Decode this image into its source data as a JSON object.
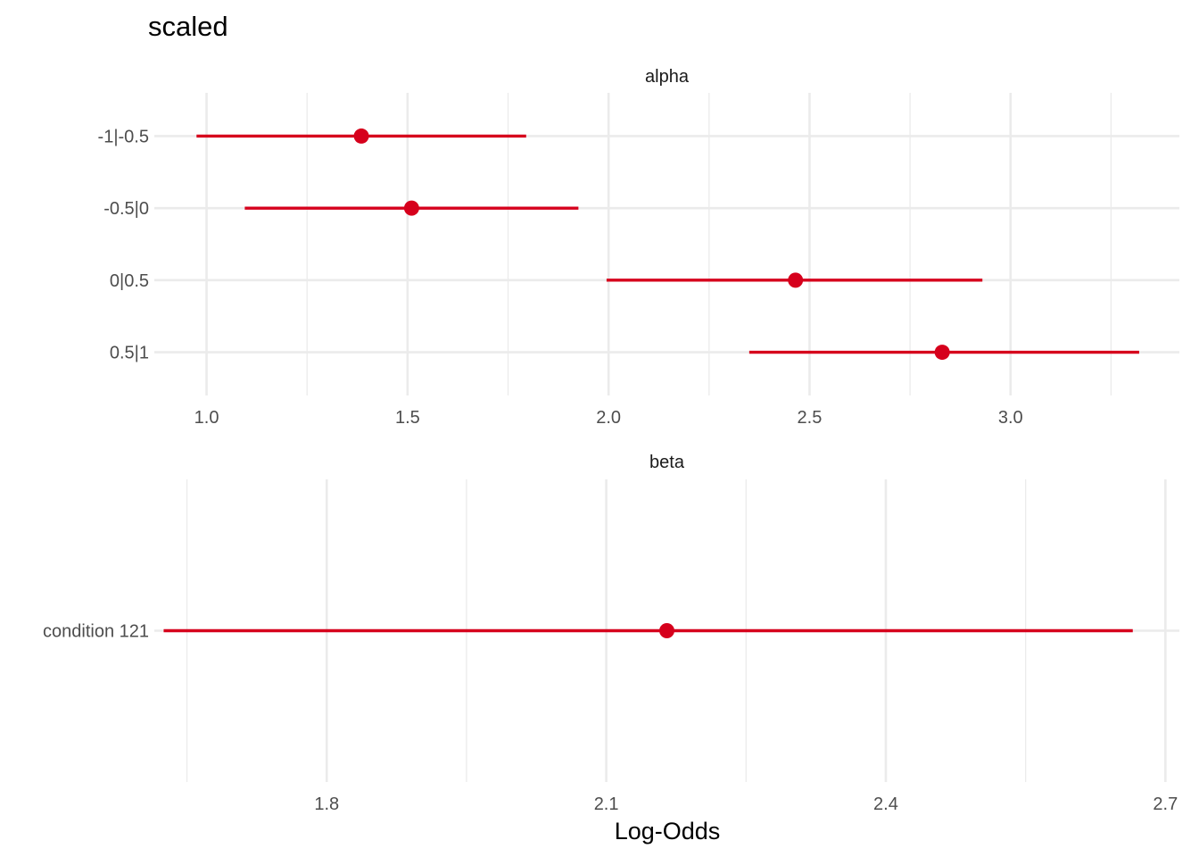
{
  "chart_data": {
    "type": "forest",
    "title": "scaled",
    "xlabel": "Log-Odds",
    "ylabel": "",
    "grid": true,
    "legend": "none",
    "colors": {
      "point": "#d6001c",
      "interval": "#d6001c",
      "grid": "#ebebeb"
    },
    "panels": [
      {
        "name": "alpha",
        "xlim": [
          0.87,
          3.42
        ],
        "xticks": [
          1.0,
          1.5,
          2.0,
          2.5,
          3.0
        ],
        "xtick_labels": [
          "1.0",
          "1.5",
          "2.0",
          "2.5",
          "3.0"
        ],
        "xminor": [
          1.25,
          1.75,
          2.25,
          2.75,
          3.25
        ],
        "rows": [
          {
            "label": "-1|-0.5",
            "estimate": 1.385,
            "lower": 0.975,
            "upper": 1.795
          },
          {
            "label": "-0.5|0",
            "estimate": 1.51,
            "lower": 1.095,
            "upper": 1.925
          },
          {
            "label": "0|0.5",
            "estimate": 2.465,
            "lower": 1.995,
            "upper": 2.93
          },
          {
            "label": "0.5|1",
            "estimate": 2.83,
            "lower": 2.35,
            "upper": 3.32
          }
        ]
      },
      {
        "name": "beta",
        "xlim": [
          1.615,
          2.715
        ],
        "xticks": [
          1.8,
          2.1,
          2.4,
          2.7
        ],
        "xtick_labels": [
          "1.8",
          "2.1",
          "2.4",
          "2.7"
        ],
        "xminor": [
          1.65,
          1.95,
          2.25,
          2.55
        ],
        "rows": [
          {
            "label": "condition 121",
            "estimate": 2.165,
            "lower": 1.625,
            "upper": 2.665
          }
        ]
      }
    ]
  }
}
